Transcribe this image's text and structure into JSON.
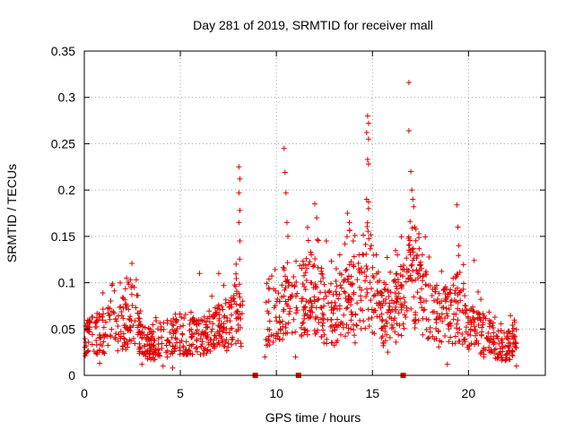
{
  "chart_data": {
    "type": "scatter",
    "title": "Day 281 of 2019, SRMTID for receiver mall",
    "xlabel": "GPS time / hours",
    "ylabel": "SRMTID / TECUs",
    "xlim": [
      0,
      24
    ],
    "ylim": [
      0,
      0.35
    ],
    "x_ticks": [
      0,
      5,
      10,
      15,
      20
    ],
    "y_ticks": [
      0,
      0.05,
      0.1,
      0.15,
      0.2,
      0.25,
      0.3,
      0.35
    ],
    "x_tick_labels": [
      "0",
      "5",
      "10",
      "15",
      "20"
    ],
    "y_tick_labels": [
      "0",
      "0.05",
      "0.1",
      "0.15",
      "0.2",
      "0.25",
      "0.3",
      "0.35"
    ],
    "grid": true,
    "marker": "+",
    "color": "#e00000",
    "series": [
      {
        "name": "SRMTID",
        "envelope": [
          {
            "x": 0.0,
            "y": 0.045
          },
          {
            "x": 0.5,
            "y": 0.045
          },
          {
            "x": 1.0,
            "y": 0.05
          },
          {
            "x": 1.5,
            "y": 0.06
          },
          {
            "x": 2.0,
            "y": 0.055
          },
          {
            "x": 2.5,
            "y": 0.07
          },
          {
            "x": 3.0,
            "y": 0.04
          },
          {
            "x": 3.5,
            "y": 0.035
          },
          {
            "x": 4.0,
            "y": 0.04
          },
          {
            "x": 4.5,
            "y": 0.045
          },
          {
            "x": 5.0,
            "y": 0.05
          },
          {
            "x": 5.5,
            "y": 0.045
          },
          {
            "x": 6.0,
            "y": 0.045
          },
          {
            "x": 6.5,
            "y": 0.05
          },
          {
            "x": 7.0,
            "y": 0.055
          },
          {
            "x": 7.5,
            "y": 0.06
          },
          {
            "x": 8.0,
            "y": 0.08
          },
          {
            "x": 8.2,
            "y": 0.06
          },
          {
            "x": 9.0,
            "y": 0.055
          },
          {
            "x": 9.5,
            "y": 0.06
          },
          {
            "x": 10.0,
            "y": 0.07
          },
          {
            "x": 10.5,
            "y": 0.09
          },
          {
            "x": 11.0,
            "y": 0.075
          },
          {
            "x": 11.5,
            "y": 0.095
          },
          {
            "x": 12.0,
            "y": 0.1
          },
          {
            "x": 12.5,
            "y": 0.075
          },
          {
            "x": 13.0,
            "y": 0.07
          },
          {
            "x": 13.5,
            "y": 0.085
          },
          {
            "x": 14.0,
            "y": 0.09
          },
          {
            "x": 14.5,
            "y": 0.1
          },
          {
            "x": 14.8,
            "y": 0.12
          },
          {
            "x": 15.0,
            "y": 0.1
          },
          {
            "x": 15.5,
            "y": 0.07
          },
          {
            "x": 16.0,
            "y": 0.075
          },
          {
            "x": 16.5,
            "y": 0.085
          },
          {
            "x": 17.0,
            "y": 0.12
          },
          {
            "x": 17.5,
            "y": 0.09
          },
          {
            "x": 18.0,
            "y": 0.08
          },
          {
            "x": 18.5,
            "y": 0.065
          },
          {
            "x": 19.0,
            "y": 0.07
          },
          {
            "x": 19.5,
            "y": 0.08
          },
          {
            "x": 20.0,
            "y": 0.055
          },
          {
            "x": 20.5,
            "y": 0.05
          },
          {
            "x": 21.0,
            "y": 0.045
          },
          {
            "x": 21.5,
            "y": 0.035
          },
          {
            "x": 22.0,
            "y": 0.035
          },
          {
            "x": 22.5,
            "y": 0.04
          }
        ],
        "peaks": [
          {
            "x": 2.2,
            "y": 0.105
          },
          {
            "x": 2.6,
            "y": 0.095
          },
          {
            "x": 6.0,
            "y": 0.11
          },
          {
            "x": 7.0,
            "y": 0.11
          },
          {
            "x": 7.9,
            "y": 0.12
          },
          {
            "x": 8.05,
            "y": 0.225
          },
          {
            "x": 8.1,
            "y": 0.212
          },
          {
            "x": 8.05,
            "y": 0.197
          },
          {
            "x": 8.1,
            "y": 0.178
          },
          {
            "x": 8.05,
            "y": 0.165
          },
          {
            "x": 8.1,
            "y": 0.145
          },
          {
            "x": 10.4,
            "y": 0.245
          },
          {
            "x": 10.45,
            "y": 0.219
          },
          {
            "x": 10.5,
            "y": 0.197
          },
          {
            "x": 10.55,
            "y": 0.165
          },
          {
            "x": 10.6,
            "y": 0.15
          },
          {
            "x": 12.0,
            "y": 0.185
          },
          {
            "x": 12.1,
            "y": 0.17
          },
          {
            "x": 12.6,
            "y": 0.145
          },
          {
            "x": 13.3,
            "y": 0.13
          },
          {
            "x": 13.7,
            "y": 0.175
          },
          {
            "x": 13.8,
            "y": 0.165
          },
          {
            "x": 14.0,
            "y": 0.145
          },
          {
            "x": 14.3,
            "y": 0.13
          },
          {
            "x": 14.75,
            "y": 0.28
          },
          {
            "x": 14.8,
            "y": 0.272
          },
          {
            "x": 14.7,
            "y": 0.262
          },
          {
            "x": 14.8,
            "y": 0.255
          },
          {
            "x": 14.75,
            "y": 0.233
          },
          {
            "x": 14.8,
            "y": 0.228
          },
          {
            "x": 14.7,
            "y": 0.19
          },
          {
            "x": 14.8,
            "y": 0.18
          },
          {
            "x": 15.2,
            "y": 0.13
          },
          {
            "x": 16.3,
            "y": 0.13
          },
          {
            "x": 16.9,
            "y": 0.316
          },
          {
            "x": 16.9,
            "y": 0.264
          },
          {
            "x": 17.0,
            "y": 0.22
          },
          {
            "x": 17.05,
            "y": 0.2
          },
          {
            "x": 17.1,
            "y": 0.19
          },
          {
            "x": 17.15,
            "y": 0.182
          },
          {
            "x": 17.2,
            "y": 0.16
          },
          {
            "x": 17.6,
            "y": 0.13
          },
          {
            "x": 19.4,
            "y": 0.184
          },
          {
            "x": 19.45,
            "y": 0.16
          },
          {
            "x": 19.5,
            "y": 0.14
          },
          {
            "x": 20.3,
            "y": 0.124
          },
          {
            "x": 20.5,
            "y": 0.09
          }
        ],
        "lows": [
          {
            "x": 0.8,
            "y": 0.013
          },
          {
            "x": 3.0,
            "y": 0.012
          },
          {
            "x": 4.1,
            "y": 0.01
          },
          {
            "x": 4.6,
            "y": 0.008
          },
          {
            "x": 9.4,
            "y": 0.02
          },
          {
            "x": 11.0,
            "y": 0.02
          },
          {
            "x": 12.9,
            "y": 0.035
          },
          {
            "x": 14.1,
            "y": 0.035
          },
          {
            "x": 15.8,
            "y": 0.025
          },
          {
            "x": 18.9,
            "y": 0.012
          },
          {
            "x": 20.8,
            "y": 0.02
          },
          {
            "x": 22.5,
            "y": 0.01
          }
        ]
      }
    ],
    "gap_markers_x": [
      8.9,
      11.15,
      16.6
    ]
  }
}
